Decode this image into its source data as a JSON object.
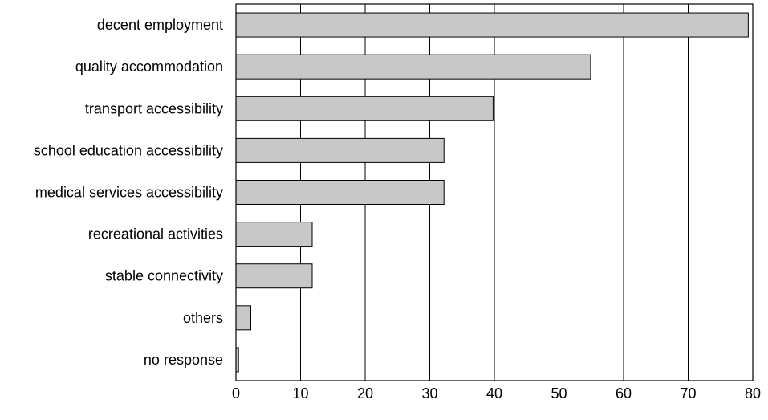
{
  "chart_data": {
    "type": "bar",
    "orientation": "horizontal",
    "categories": [
      "decent employment",
      "quality accommodation",
      "transport accessibility",
      "school education accessibility",
      "medical services accessibility",
      "recreational activities",
      "stable connectivity",
      "others",
      "no response"
    ],
    "values": [
      79.3,
      54.9,
      39.8,
      32.2,
      32.2,
      11.8,
      11.8,
      2.3,
      0.4
    ],
    "title": "",
    "xlabel": "",
    "ylabel": "",
    "xlim": [
      0,
      80
    ],
    "xticks": [
      0,
      10,
      20,
      30,
      40,
      50,
      60,
      70,
      80
    ],
    "xtick_labels": [
      "0",
      "10",
      "20",
      "30",
      "40",
      "50",
      "60",
      "70",
      "80"
    ],
    "grid": "vertical",
    "bar_color": "#c8c8c8",
    "edge_color": "#000000"
  }
}
